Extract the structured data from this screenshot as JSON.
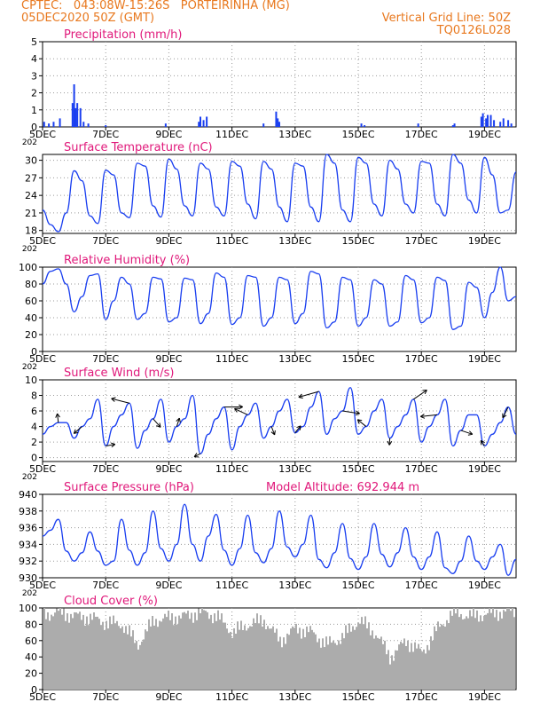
{
  "header": {
    "line1": "CPTEC:   043:08W-15:26S   PORTEIRINHA (MG)",
    "line2": "05DEC2020 50Z (GMT)",
    "right1": "Vertical Grid Line: 50Z",
    "right2": "TQ0126L028"
  },
  "colors": {
    "header": "#e8781e",
    "title": "#e0187a",
    "line": "#1a3ff0",
    "cloud": "#acacac",
    "grid": "#9a9a9a"
  },
  "x_axis": {
    "labels": [
      "5DEC",
      "7DEC",
      "9DEC",
      "11DEC",
      "13DEC",
      "15DEC",
      "17DEC",
      "19DEC"
    ],
    "label_days": [
      0,
      2,
      4,
      6,
      8,
      10,
      12,
      14
    ],
    "year_stub": "202",
    "range_days": [
      0,
      15
    ]
  },
  "chart_data": [
    {
      "type": "bar",
      "title": "Precipitation (mm/h)",
      "ylim": [
        0,
        5
      ],
      "yticks": [
        "0",
        "1",
        "2",
        "3",
        "4",
        "5"
      ],
      "x_day": [
        0.05,
        0.2,
        0.35,
        0.55,
        0.95,
        1.0,
        1.05,
        1.1,
        1.2,
        1.3,
        1.45,
        2.0,
        3.9,
        4.95,
        5.0,
        5.1,
        5.2,
        7.0,
        7.4,
        7.45,
        7.5,
        10.1,
        10.2,
        11.9,
        13.0,
        13.05,
        13.9,
        13.95,
        14.05,
        14.1,
        14.2,
        14.3,
        14.5,
        14.6,
        14.75,
        14.85
      ],
      "values": [
        0.3,
        0.2,
        0.3,
        0.5,
        1.4,
        2.5,
        1.1,
        1.4,
        1.1,
        0.3,
        0.2,
        0.1,
        0.2,
        0.3,
        0.6,
        0.4,
        0.6,
        0.2,
        0.9,
        0.5,
        0.3,
        0.2,
        0.1,
        0.2,
        0.1,
        0.2,
        0.6,
        0.8,
        0.5,
        0.7,
        0.7,
        0.4,
        0.3,
        0.5,
        0.4,
        0.2
      ]
    },
    {
      "type": "line",
      "title": "Surface Temperature (nC)",
      "ylim": [
        17.5,
        31
      ],
      "yticks": [
        "18",
        "21",
        "24",
        "27",
        "30"
      ],
      "x_day": [
        0,
        0.25,
        0.5,
        0.75,
        1,
        1.25,
        1.5,
        1.75,
        2,
        2.25,
        2.5,
        2.75,
        3,
        3.25,
        3.5,
        3.75,
        4,
        4.25,
        4.5,
        4.75,
        5,
        5.25,
        5.5,
        5.75,
        6,
        6.25,
        6.5,
        6.75,
        7,
        7.25,
        7.5,
        7.75,
        8,
        8.25,
        8.5,
        8.75,
        9,
        9.25,
        9.5,
        9.75,
        10,
        10.25,
        10.5,
        10.75,
        11,
        11.25,
        11.5,
        11.75,
        12,
        12.25,
        12.5,
        12.75,
        13,
        13.25,
        13.5,
        13.75,
        14,
        14.25,
        14.5,
        14.75,
        15
      ],
      "values": [
        21.5,
        19,
        17.8,
        21,
        28.2,
        26.5,
        20.5,
        19.2,
        28.3,
        27.5,
        21,
        20.2,
        29.5,
        29,
        22.2,
        20.3,
        30.2,
        28.5,
        22.2,
        20.5,
        29.5,
        28.5,
        22,
        20.5,
        29.8,
        29,
        22.5,
        20,
        29.8,
        28.5,
        22,
        19.5,
        29.5,
        29,
        22,
        19.5,
        31,
        29.5,
        21.5,
        19.5,
        30.5,
        29.5,
        22.5,
        20.5,
        30,
        28.5,
        22.5,
        21,
        29.8,
        29.5,
        22.5,
        20.5,
        31,
        29.5,
        23.2,
        21,
        30.5,
        27.5,
        21,
        21.5,
        28
      ]
    },
    {
      "type": "line",
      "title": "Relative Humidity (%)",
      "ylim": [
        0,
        100
      ],
      "yticks": [
        "0",
        "20",
        "40",
        "60",
        "80",
        "100"
      ],
      "x_day": [
        0,
        0.25,
        0.5,
        0.75,
        1,
        1.25,
        1.5,
        1.75,
        2,
        2.25,
        2.5,
        2.75,
        3,
        3.25,
        3.5,
        3.75,
        4,
        4.25,
        4.5,
        4.75,
        5,
        5.25,
        5.5,
        5.75,
        6,
        6.25,
        6.5,
        6.75,
        7,
        7.25,
        7.5,
        7.75,
        8,
        8.25,
        8.5,
        8.75,
        9,
        9.25,
        9.5,
        9.75,
        10,
        10.25,
        10.5,
        10.75,
        11,
        11.25,
        11.5,
        11.75,
        12,
        12.25,
        12.5,
        12.75,
        13,
        13.25,
        13.5,
        13.75,
        14,
        14.25,
        14.5,
        14.75,
        15
      ],
      "values": [
        80,
        95,
        98,
        80,
        47,
        65,
        90,
        92,
        38,
        60,
        88,
        80,
        38,
        45,
        88,
        86,
        35,
        40,
        87,
        85,
        33,
        45,
        93,
        88,
        32,
        40,
        90,
        88,
        30,
        40,
        88,
        85,
        33,
        45,
        95,
        92,
        28,
        35,
        88,
        85,
        30,
        40,
        85,
        80,
        30,
        35,
        90,
        85,
        34,
        40,
        88,
        84,
        26,
        30,
        82,
        76,
        40,
        70,
        100,
        60,
        65
      ]
    },
    {
      "type": "line",
      "title": "Surface Wind (m/s)",
      "ylim": [
        -0.5,
        10
      ],
      "yticks": [
        "0",
        "2",
        "4",
        "6",
        "8",
        "10"
      ],
      "x_day": [
        0,
        0.25,
        0.5,
        0.75,
        1,
        1.25,
        1.5,
        1.75,
        2,
        2.25,
        2.5,
        2.75,
        3,
        3.25,
        3.5,
        3.75,
        4,
        4.25,
        4.5,
        4.75,
        5,
        5.25,
        5.5,
        5.75,
        6,
        6.25,
        6.5,
        6.75,
        7,
        7.25,
        7.5,
        7.75,
        8,
        8.25,
        8.5,
        8.75,
        9,
        9.25,
        9.5,
        9.75,
        10,
        10.25,
        10.5,
        10.75,
        11,
        11.25,
        11.5,
        11.75,
        12,
        12.25,
        12.5,
        12.75,
        13,
        13.25,
        13.5,
        13.75,
        14,
        14.25,
        14.5,
        14.75,
        15
      ],
      "values": [
        3,
        4,
        4.5,
        4.5,
        2.5,
        4,
        5,
        7.5,
        1.5,
        4,
        5.5,
        7,
        1.2,
        3.5,
        5,
        7.5,
        2,
        4,
        5,
        8,
        0.5,
        3,
        5,
        6.5,
        1,
        4,
        5.5,
        7,
        2.5,
        4,
        6,
        7.5,
        3.2,
        4,
        6.5,
        8.5,
        3,
        5,
        6,
        9,
        3,
        4,
        6,
        7.5,
        2.5,
        4,
        5.5,
        7.5,
        2,
        4,
        5.5,
        7.5,
        1.5,
        3.5,
        5.5,
        5.5,
        1.5,
        3,
        4.5,
        6.5,
        3
      ]
    },
    {
      "type": "line",
      "title": "Surface Pressure (hPa)",
      "subtitle": "Model Altitude: 692.944  m",
      "ylim": [
        930,
        940
      ],
      "yticks": [
        "930",
        "932",
        "934",
        "936",
        "938",
        "940"
      ],
      "x_day": [
        0,
        0.25,
        0.5,
        0.75,
        1,
        1.25,
        1.5,
        1.75,
        2,
        2.25,
        2.5,
        2.75,
        3,
        3.25,
        3.5,
        3.75,
        4,
        4.25,
        4.5,
        4.75,
        5,
        5.25,
        5.5,
        5.75,
        6,
        6.25,
        6.5,
        6.75,
        7,
        7.25,
        7.5,
        7.75,
        8,
        8.25,
        8.5,
        8.75,
        9,
        9.25,
        9.5,
        9.75,
        10,
        10.25,
        10.5,
        10.75,
        11,
        11.25,
        11.5,
        11.75,
        12,
        12.25,
        12.5,
        12.75,
        13,
        13.25,
        13.5,
        13.75,
        14,
        14.25,
        14.5,
        14.75,
        15
      ],
      "values": [
        935,
        935.7,
        937,
        933.2,
        932,
        933,
        935.5,
        933.2,
        931.5,
        932,
        937,
        933.3,
        931.5,
        933,
        938,
        933.5,
        932,
        934,
        938.8,
        934,
        932,
        935,
        937.6,
        933.3,
        931.5,
        933.5,
        937.5,
        933,
        931.8,
        933.5,
        938,
        933.7,
        932.5,
        934,
        937.5,
        932.2,
        931.2,
        933,
        936.5,
        932.3,
        931,
        932.5,
        936.5,
        932.8,
        931.3,
        933,
        936,
        932.5,
        931,
        932.5,
        935.5,
        931.2,
        930.5,
        932,
        935,
        932,
        931,
        932.5,
        934,
        930.3,
        932.2
      ]
    },
    {
      "type": "area",
      "title": "Cloud Cover (%)",
      "ylim": [
        0,
        100
      ],
      "yticks": [
        "0",
        "20",
        "40",
        "60",
        "80",
        "100"
      ],
      "x_day": [
        0,
        0.5,
        1,
        1.5,
        2,
        2.5,
        3,
        3.5,
        4,
        4.5,
        5,
        5.5,
        6,
        6.5,
        7,
        7.5,
        8,
        8.5,
        9,
        9.5,
        10,
        10.5,
        11,
        11.5,
        12,
        12.5,
        13,
        13.5,
        14,
        14.5,
        15
      ],
      "values": [
        92,
        95,
        90,
        88,
        82,
        80,
        55,
        85,
        88,
        90,
        95,
        90,
        70,
        80,
        85,
        60,
        75,
        70,
        55,
        65,
        85,
        70,
        40,
        60,
        45,
        75,
        95,
        90,
        92,
        95,
        96
      ]
    }
  ]
}
